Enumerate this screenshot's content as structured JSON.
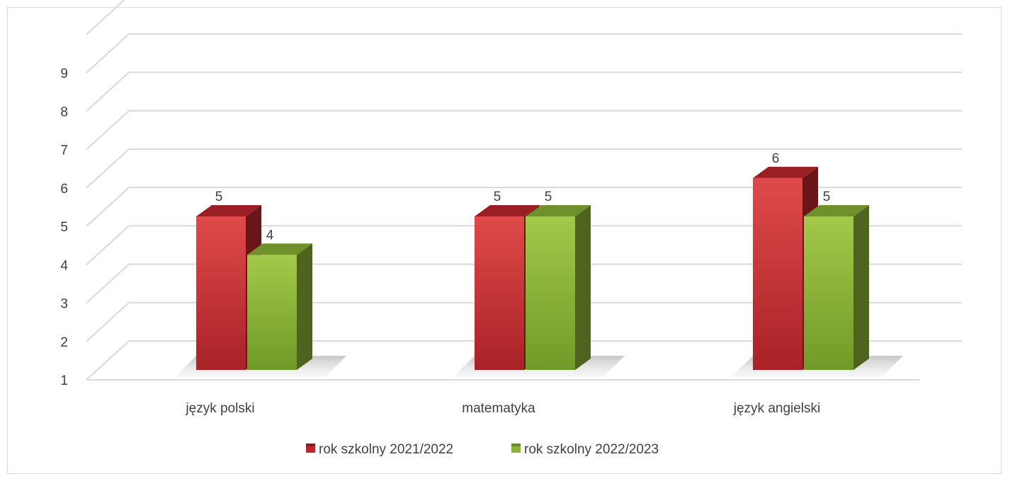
{
  "colors": {
    "series_1": "#c0272d",
    "series_2": "#8cb437",
    "grid": "#d9d9d9",
    "text": "#404040"
  },
  "chart_data": {
    "type": "bar",
    "categories": [
      "język polski",
      "matematyka",
      "język angielski"
    ],
    "series": [
      {
        "name": "rok szkolny 2021/2022",
        "values": [
          5,
          5,
          6
        ]
      },
      {
        "name": "rok szkolny 2022/2023",
        "values": [
          4,
          5,
          5
        ]
      }
    ],
    "ylim": [
      1,
      9
    ],
    "yticks": [
      1,
      2,
      3,
      4,
      5,
      6,
      7,
      8,
      9
    ],
    "grid": true,
    "legend": "bottom",
    "data_labels": true,
    "style": "3d-clustered-column"
  }
}
